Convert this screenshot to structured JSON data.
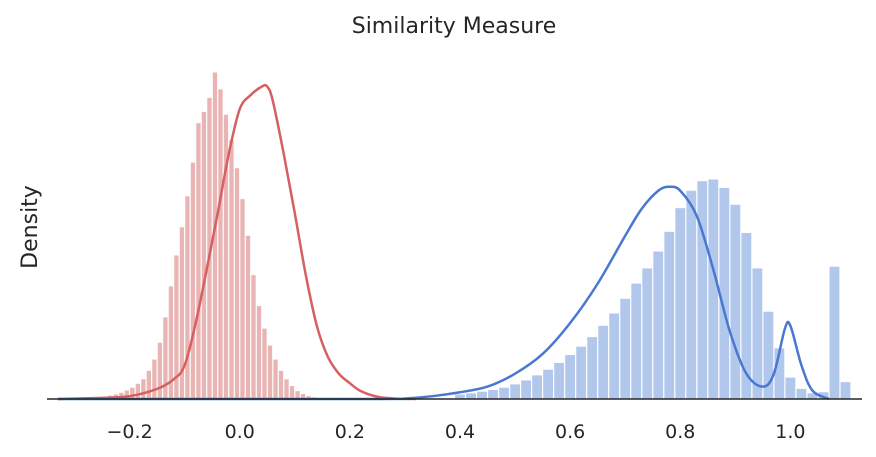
{
  "chart_data": {
    "type": "histogram",
    "title": "Similarity Measure",
    "xlabel": "",
    "ylabel": "Density",
    "xlim": [
      -0.35,
      1.13
    ],
    "ylim": [
      0,
      6.2
    ],
    "xticks": [
      "−0.2",
      "0.0",
      "0.2",
      "0.4",
      "0.6",
      "0.8",
      "1.0"
    ],
    "xtick_values": [
      -0.2,
      0.0,
      0.2,
      0.4,
      0.6,
      0.8,
      1.0
    ],
    "grid": false,
    "legend": "none",
    "series": [
      {
        "color_bar": "#e8b4b4",
        "color_line": "#d65f5f",
        "bins": {
          "start": -0.3,
          "width": 0.01,
          "values": [
            0.01,
            0.01,
            0.02,
            0.02,
            0.03,
            0.04,
            0.06,
            0.08,
            0.11,
            0.15,
            0.2,
            0.27,
            0.35,
            0.5,
            0.7,
            1.0,
            1.45,
            2.0,
            2.55,
            3.05,
            3.6,
            4.2,
            4.9,
            5.1,
            5.35,
            5.8,
            5.5,
            5.05,
            4.6,
            4.1,
            3.55,
            2.9,
            2.2,
            1.65,
            1.25,
            0.95,
            0.7,
            0.5,
            0.35,
            0.23,
            0.14,
            0.09,
            0.05,
            0.03,
            0.02,
            0.01,
            0.01,
            0.01,
            0.005,
            0.005
          ]
        },
        "kde": {
          "x": [
            -0.33,
            -0.25,
            -0.2,
            -0.15,
            -0.12,
            -0.1,
            -0.08,
            -0.06,
            -0.04,
            -0.02,
            0.0,
            0.02,
            0.04,
            0.05,
            0.06,
            0.08,
            0.1,
            0.12,
            0.14,
            0.16,
            0.18,
            0.2,
            0.22,
            0.25,
            0.28,
            0.32
          ],
          "y": [
            0.0,
            0.02,
            0.05,
            0.18,
            0.35,
            0.6,
            1.35,
            2.3,
            3.3,
            4.35,
            5.15,
            5.4,
            5.55,
            5.55,
            5.3,
            4.35,
            3.3,
            2.2,
            1.3,
            0.75,
            0.45,
            0.28,
            0.14,
            0.04,
            0.01,
            0.0
          ]
        }
      },
      {
        "color_bar": "#b1c7ec",
        "color_line": "#4878cf",
        "bins": {
          "start": 0.39,
          "width": 0.02,
          "values": [
            0.08,
            0.1,
            0.13,
            0.16,
            0.2,
            0.26,
            0.33,
            0.42,
            0.52,
            0.64,
            0.78,
            0.93,
            1.1,
            1.3,
            1.52,
            1.78,
            2.05,
            2.32,
            2.62,
            2.97,
            3.39,
            3.7,
            3.87,
            3.9,
            3.75,
            3.45,
            2.95,
            2.32,
            1.55,
            0.9,
            0.38,
            0.18,
            0.1,
            0.12,
            2.35,
            0.3
          ]
        },
        "kde": {
          "x": [
            -0.33,
            0.25,
            0.3,
            0.35,
            0.4,
            0.45,
            0.5,
            0.55,
            0.6,
            0.65,
            0.7,
            0.73,
            0.76,
            0.78,
            0.8,
            0.83,
            0.86,
            0.89,
            0.92,
            0.95,
            0.97,
            0.99,
            1.0,
            1.02,
            1.04,
            1.07
          ],
          "y": [
            0.0,
            0.0,
            0.01,
            0.05,
            0.12,
            0.22,
            0.45,
            0.8,
            1.35,
            2.05,
            2.9,
            3.38,
            3.7,
            3.77,
            3.7,
            3.25,
            2.3,
            1.2,
            0.45,
            0.22,
            0.45,
            1.25,
            1.3,
            0.6,
            0.15,
            0.0
          ]
        }
      }
    ]
  }
}
